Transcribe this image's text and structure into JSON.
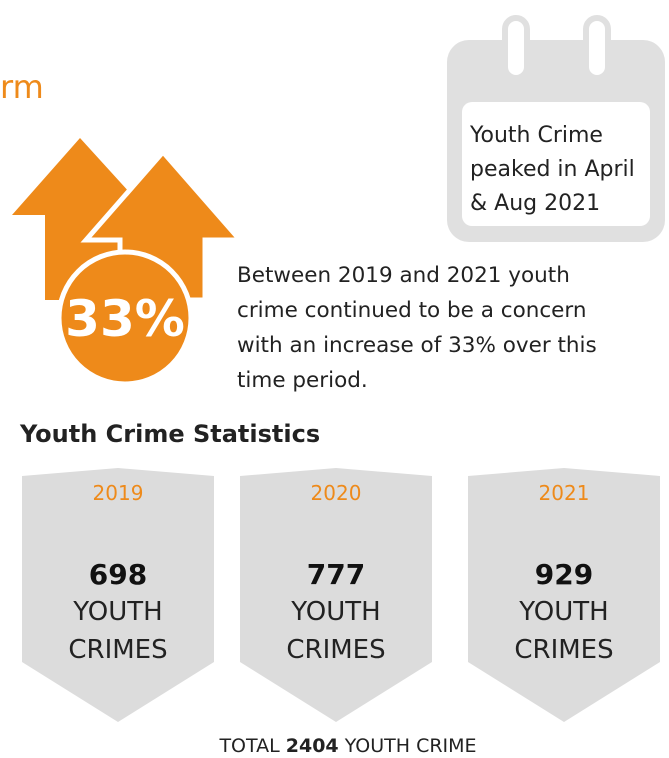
{
  "heading": "rm",
  "badge": "33%",
  "calendar_lines": [
    "Youth Crime",
    "peaked in April",
    "& Aug 2021"
  ],
  "description_lines": [
    "Between 2019 and 2021 youth",
    "crime continued to be a concern",
    "with an increase of 33% over this",
    "time period."
  ],
  "section_title": "Youth Crime Statistics",
  "cards": [
    {
      "year": "2019",
      "count": 698,
      "label_lines": [
        "YOUTH",
        "CRIMES"
      ]
    },
    {
      "year": "2020",
      "count": 777,
      "label_lines": [
        "YOUTH",
        "CRIMES"
      ]
    },
    {
      "year": "2021",
      "count": 929,
      "label_lines": [
        "YOUTH",
        "CRIMES"
      ]
    }
  ],
  "total": {
    "prefix": "TOTAL",
    "value": 2404,
    "suffix": "YOUTH CRIME"
  }
}
